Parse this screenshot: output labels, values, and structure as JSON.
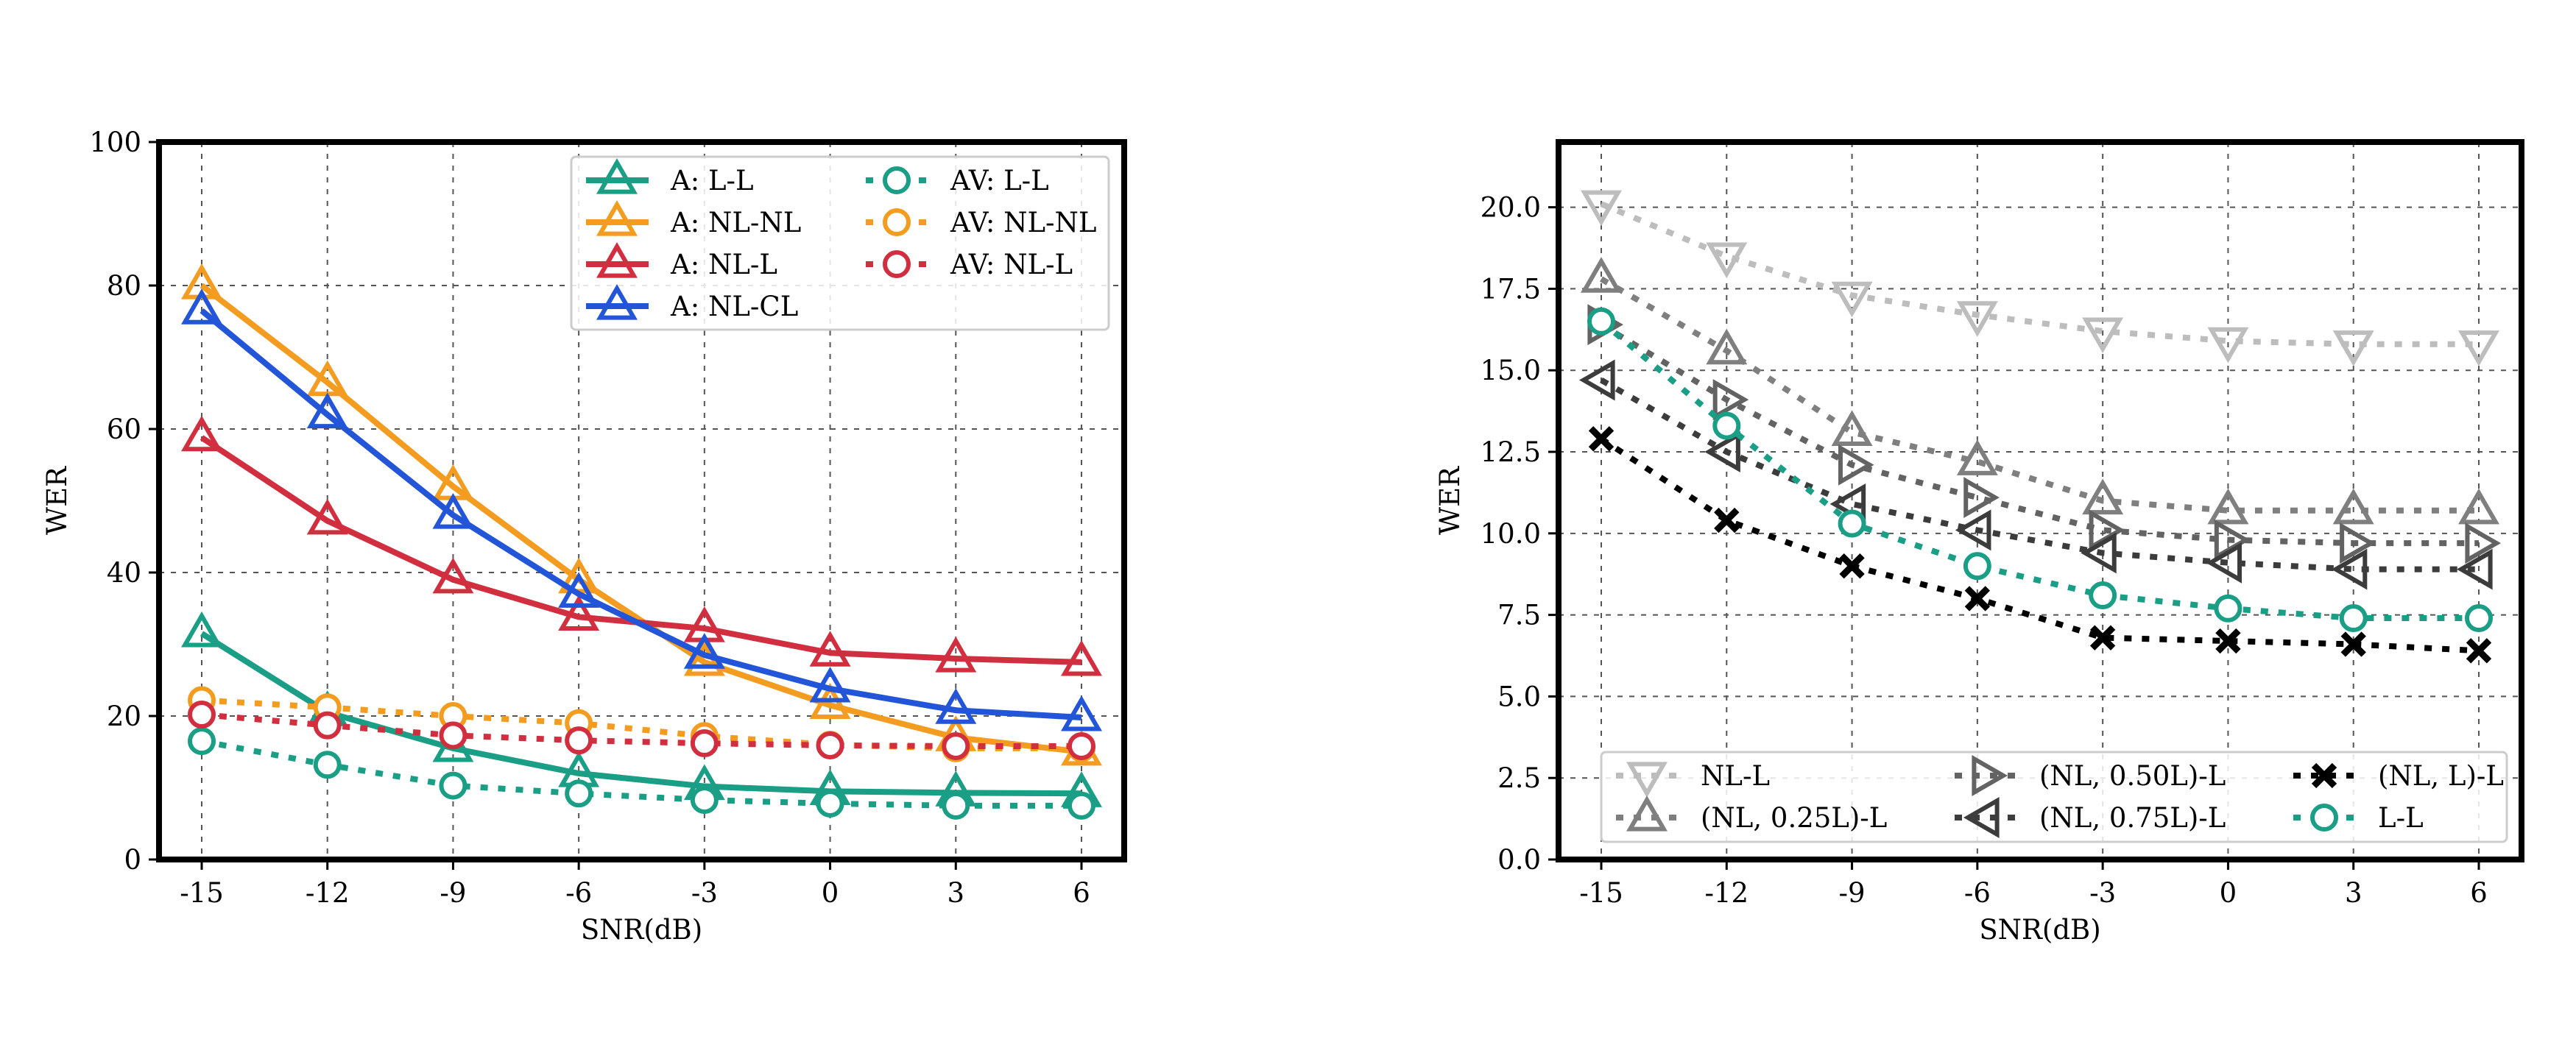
{
  "chart_data": [
    {
      "type": "line",
      "xlabel": "SNR(dB)",
      "ylabel": "WER",
      "x": [
        -15,
        -12,
        -9,
        -6,
        -3,
        0,
        3,
        6
      ],
      "x_tick_labels": [
        "-15",
        "-12",
        "-9",
        "-6",
        "-3",
        "0",
        "3",
        "6"
      ],
      "y_ticks": [
        0,
        20,
        40,
        60,
        80,
        100
      ],
      "y_tick_labels": [
        "0",
        "20",
        "40",
        "60",
        "80",
        "100"
      ],
      "ylim": [
        0,
        100
      ],
      "grid": true,
      "legend_position": "top-right",
      "series": [
        {
          "name": "A: L-L",
          "color": "#1a9e85",
          "dash": "solid",
          "marker": "triangle-up",
          "values": [
            31.5,
            20.5,
            15.5,
            12,
            10.2,
            9.5,
            9.3,
            9.2
          ]
        },
        {
          "name": "A: NL-NL",
          "color": "#f39c1f",
          "dash": "solid",
          "marker": "triangle-up",
          "values": [
            80,
            66.5,
            52,
            39,
            27.5,
            21.5,
            17,
            15
          ]
        },
        {
          "name": "A: NL-L",
          "color": "#d12f3f",
          "dash": "solid",
          "marker": "triangle-up",
          "values": [
            58.8,
            47.2,
            39,
            33.8,
            32.2,
            28.8,
            28,
            27.5
          ]
        },
        {
          "name": "A: NL-CL",
          "color": "#2355d8",
          "dash": "solid",
          "marker": "triangle-up",
          "values": [
            76.5,
            62,
            48,
            37,
            28.5,
            23.8,
            20.8,
            19.8
          ]
        },
        {
          "name": "AV: L-L",
          "color": "#1a9e85",
          "dash": "dotted",
          "marker": "circle",
          "values": [
            16.5,
            13.2,
            10.3,
            9.2,
            8.3,
            7.8,
            7.5,
            7.5
          ]
        },
        {
          "name": "AV: NL-NL",
          "color": "#f39c1f",
          "dash": "dotted",
          "marker": "circle",
          "values": [
            22.2,
            21.2,
            20,
            19,
            17.2,
            16,
            15.5,
            15.5
          ]
        },
        {
          "name": "AV: NL-L",
          "color": "#d12f3f",
          "dash": "dotted",
          "marker": "circle",
          "values": [
            20.2,
            18.7,
            17.3,
            16.6,
            16.2,
            15.9,
            15.8,
            15.8
          ]
        }
      ]
    },
    {
      "type": "line",
      "xlabel": "SNR(dB)",
      "ylabel": "WER",
      "x": [
        -15,
        -12,
        -9,
        -6,
        -3,
        0,
        3,
        6
      ],
      "x_tick_labels": [
        "-15",
        "-12",
        "-9",
        "-6",
        "-3",
        "0",
        "3",
        "6"
      ],
      "y_ticks": [
        0,
        2.5,
        5,
        7.5,
        10,
        12.5,
        15,
        17.5,
        20
      ],
      "y_tick_labels": [
        "0.0",
        "2.5",
        "5.0",
        "7.5",
        "10.0",
        "12.5",
        "15.0",
        "17.5",
        "20.0"
      ],
      "ylim": [
        0,
        22
      ],
      "grid": true,
      "legend_position": "bottom-center",
      "series": [
        {
          "name": "NL-L",
          "color": "#bdbdbd",
          "dash": "dotted",
          "marker": "triangle-down",
          "values": [
            20.1,
            18.5,
            17.3,
            16.7,
            16.2,
            15.9,
            15.8,
            15.8
          ]
        },
        {
          "name": "(NL, 0.25L)-L",
          "color": "#7f7f7f",
          "dash": "dotted",
          "marker": "triangle-up",
          "values": [
            17.8,
            15.6,
            13.1,
            12.2,
            11,
            10.7,
            10.7,
            10.7
          ]
        },
        {
          "name": "(NL, 0.50L)-L",
          "color": "#636363",
          "dash": "dotted",
          "marker": "triangle-right",
          "values": [
            16.4,
            14.1,
            12.1,
            11.1,
            10.1,
            9.8,
            9.7,
            9.7
          ]
        },
        {
          "name": "(NL, 0.75L)-L",
          "color": "#3c3c3c",
          "dash": "dotted",
          "marker": "triangle-left",
          "values": [
            14.7,
            12.5,
            10.9,
            10.1,
            9.4,
            9.1,
            8.9,
            8.9
          ]
        },
        {
          "name": "(NL, L)-L",
          "color": "#000000",
          "dash": "dotted",
          "marker": "x",
          "values": [
            12.9,
            10.4,
            9,
            8,
            6.8,
            6.7,
            6.6,
            6.4
          ]
        },
        {
          "name": "L-L",
          "color": "#1a9e85",
          "dash": "dotted",
          "marker": "circle",
          "values": [
            16.5,
            13.3,
            10.3,
            9,
            8.1,
            7.7,
            7.4,
            7.4
          ]
        }
      ]
    }
  ]
}
